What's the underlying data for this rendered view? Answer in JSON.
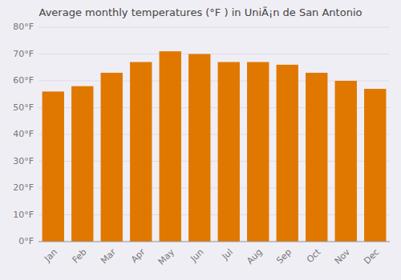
{
  "chart_data": {
    "type": "bar",
    "title": "Average monthly temperatures (°F ) in UniÃ¡n de San Antonio",
    "categories": [
      "Jan",
      "Feb",
      "Mar",
      "Apr",
      "May",
      "Jun",
      "Jul",
      "Aug",
      "Sep",
      "Oct",
      "Nov",
      "Dec"
    ],
    "values": [
      56,
      58,
      63,
      67,
      71,
      70,
      67,
      67,
      66,
      63,
      60,
      57
    ],
    "color": "#E07800",
    "ylim": [
      0,
      80
    ],
    "yticks": [
      {
        "value": 0,
        "label": "0°F"
      },
      {
        "value": 10,
        "label": "10°F"
      },
      {
        "value": 20,
        "label": "20°F"
      },
      {
        "value": 30,
        "label": "30°F"
      },
      {
        "value": 40,
        "label": "40°F"
      },
      {
        "value": 50,
        "label": "50°F"
      },
      {
        "value": 60,
        "label": "60°F"
      },
      {
        "value": 70,
        "label": "70°F"
      },
      {
        "value": 80,
        "label": "80°F"
      }
    ],
    "grid": true
  }
}
